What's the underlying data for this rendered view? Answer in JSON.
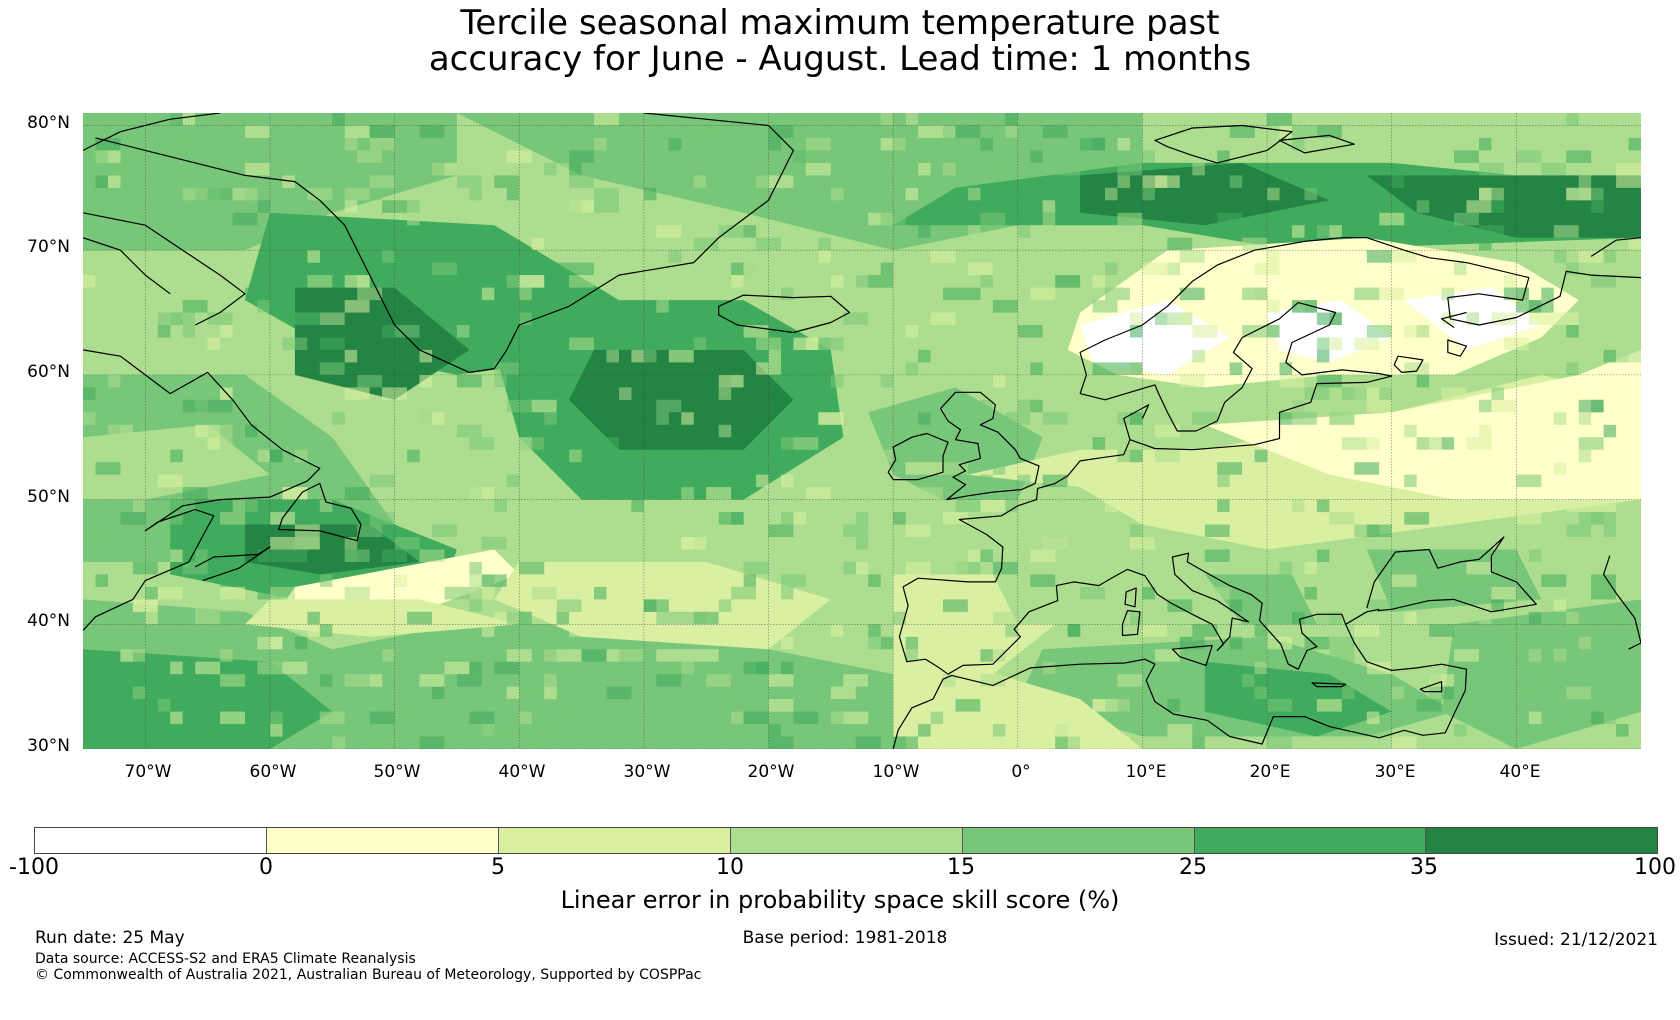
{
  "title": {
    "line1": "Tercile seasonal maximum temperature past",
    "line2": "accuracy for June - August. Lead time: 1 months"
  },
  "map": {
    "projection": "PlateCarree",
    "lon_range": [
      -75,
      50
    ],
    "lat_range": [
      30,
      81
    ],
    "lat_ticks": [
      "80°N",
      "70°N",
      "60°N",
      "50°N",
      "40°N",
      "30°N"
    ],
    "lon_ticks": [
      "70°W",
      "60°W",
      "50°W",
      "40°W",
      "30°W",
      "20°W",
      "10°W",
      "0°",
      "10°E",
      "20°E",
      "30°E",
      "40°E"
    ],
    "gridlines": true,
    "colors": {
      "c_neg": "#ffffff",
      "c0": "#ffffcc",
      "c5": "#d9f0a3",
      "c10": "#addd8e",
      "c15": "#78c679",
      "c25": "#41ab5d",
      "c35": "#238443",
      "coast": "#000000"
    }
  },
  "colorbar": {
    "segments": [
      {
        "from": -100,
        "to": 0,
        "color": "#ffffff"
      },
      {
        "from": 0,
        "to": 5,
        "color": "#ffffcc"
      },
      {
        "from": 5,
        "to": 10,
        "color": "#d9f0a3"
      },
      {
        "from": 10,
        "to": 15,
        "color": "#addd8e"
      },
      {
        "from": 15,
        "to": 25,
        "color": "#78c679"
      },
      {
        "from": 25,
        "to": 35,
        "color": "#41ab5d"
      },
      {
        "from": 35,
        "to": 100,
        "color": "#238443"
      }
    ],
    "tick_labels": [
      "-100",
      "0",
      "5",
      "10",
      "15",
      "25",
      "35",
      "100"
    ],
    "label": "Linear error in probability space skill score (%)"
  },
  "footer": {
    "run_date": "Run date: 25 May",
    "base_period": "Base period: 1981-2018",
    "issued": "Issued: 21/12/2021",
    "data_source": "Data source: ACCESS-S2 and ERA5 Climate Reanalysis",
    "copyright": "© Commonwealth of Australia 2021, Australian Bureau of Meteorology, Supported by COSPPac"
  }
}
